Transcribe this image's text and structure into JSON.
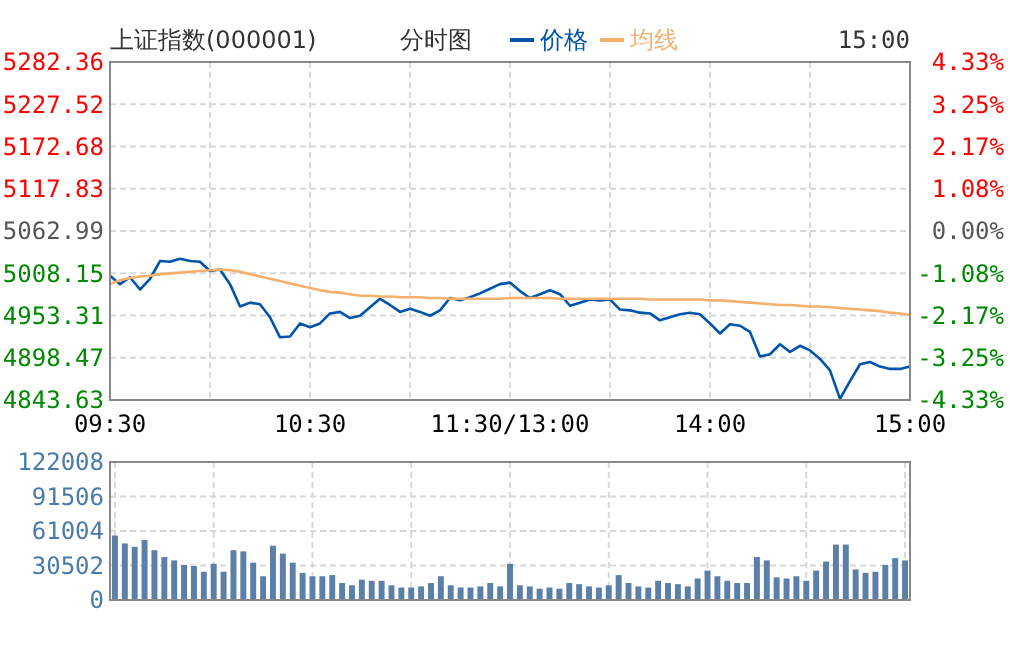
{
  "chart_data": [
    {
      "type": "line",
      "title": "上证指数(000001)",
      "subtitle": "分时图",
      "annotations": [
        "15:00"
      ],
      "legend": "top",
      "grid": true,
      "marker": "none",
      "line_style": "solid",
      "categories": [
        "09:30",
        null,
        null,
        null,
        null,
        null,
        null,
        null,
        null,
        null,
        null,
        null,
        null,
        null,
        null,
        null,
        null,
        null,
        null,
        null,
        "10:30",
        null,
        null,
        null,
        null,
        null,
        null,
        null,
        null,
        null,
        null,
        null,
        null,
        null,
        null,
        null,
        null,
        null,
        null,
        null,
        "11:30/13:00",
        null,
        null,
        null,
        null,
        null,
        null,
        null,
        null,
        null,
        null,
        null,
        null,
        null,
        null,
        null,
        null,
        null,
        null,
        null,
        "14:00",
        null,
        null,
        null,
        null,
        null,
        null,
        null,
        null,
        null,
        null,
        null,
        null,
        null,
        null,
        null,
        null,
        null,
        null,
        null,
        "15:00"
      ],
      "ylim": [
        4843.63,
        5282.36
      ],
      "yticks": [
        {
          "value": 5282.36,
          "label": "5282.36"
        },
        {
          "value": 5227.52,
          "label": "5227.52"
        },
        {
          "value": 5172.68,
          "label": "5172.68"
        },
        {
          "value": 5117.83,
          "label": "5117.83"
        },
        {
          "value": 5062.99,
          "label": "5062.99"
        },
        {
          "value": 5008.15,
          "label": "5008.15"
        },
        {
          "value": 4953.31,
          "label": "4953.31"
        },
        {
          "value": 4898.47,
          "label": "4898.47"
        },
        {
          "value": 4843.63,
          "label": "4843.63"
        }
      ],
      "y2lim": [
        -4.33,
        4.33
      ],
      "y2ticks": [
        {
          "value": 4.33,
          "label": "4.33%"
        },
        {
          "value": 3.25,
          "label": "3.25%"
        },
        {
          "value": 2.17,
          "label": "2.17%"
        },
        {
          "value": 1.08,
          "label": "1.08%"
        },
        {
          "value": 0,
          "label": "0.00%"
        },
        {
          "value": -1.08,
          "label": "-1.08%"
        },
        {
          "value": -2.17,
          "label": "-2.17%"
        },
        {
          "value": -3.25,
          "label": "-3.25%"
        },
        {
          "value": -4.33,
          "label": "-4.33%"
        }
      ],
      "series": [
        {
          "name": "价格",
          "color": "#0055aa",
          "values": [
            5005,
            4994,
            5003,
            4987,
            5001,
            5024,
            5023,
            5027,
            5024,
            5023,
            5011,
            5013,
            4994,
            4965,
            4970,
            4968,
            4951,
            4925,
            4926,
            4943,
            4938,
            4943,
            4956,
            4958,
            4950,
            4953,
            4964,
            4975,
            4967,
            4958,
            4962,
            4958,
            4953,
            4960,
            4976,
            4973,
            4977,
            4982,
            4988,
            4994,
            4996,
            4985,
            4976,
            4981,
            4986,
            4981,
            4966,
            4970,
            4974,
            4973,
            4974,
            4961,
            4960,
            4957,
            4956,
            4947,
            4951,
            4955,
            4957,
            4955,
            4943,
            4930,
            4942,
            4940,
            4932,
            4900,
            4903,
            4916,
            4906,
            4914,
            4908,
            4897,
            4882,
            4845,
            4868,
            4890,
            4893,
            4887,
            4884,
            4884,
            4887
          ]
        },
        {
          "name": "均线",
          "color": "#f5b06e",
          "values": [
            4994,
            4999,
            5002,
            5004,
            5005,
            5007,
            5008,
            5009,
            5010,
            5011,
            5012,
            5013,
            5012,
            5010,
            5007,
            5004,
            5001,
            4998,
            4995,
            4992,
            4989,
            4986,
            4984,
            4983,
            4981,
            4979,
            4979,
            4978,
            4978,
            4977,
            4977,
            4977,
            4976,
            4976,
            4975,
            4975,
            4975,
            4975,
            4975,
            4975,
            4976,
            4976,
            4976,
            4976,
            4976,
            4975,
            4975,
            4975,
            4975,
            4975,
            4975,
            4975,
            4975,
            4975,
            4974,
            4974,
            4974,
            4974,
            4974,
            4974,
            4973,
            4973,
            4972,
            4971,
            4970,
            4969,
            4968,
            4967,
            4967,
            4966,
            4965,
            4965,
            4964,
            4963,
            4962,
            4961,
            4960,
            4959,
            4957,
            4956,
            4954
          ]
        }
      ]
    },
    {
      "type": "bar",
      "grid": true,
      "tick_labels": "y",
      "color": "#5b7fa6",
      "categories": [
        null,
        null,
        null,
        null,
        null,
        null,
        null,
        null,
        null,
        null,
        null,
        null,
        null,
        null,
        null,
        null,
        null,
        null,
        null,
        null,
        null,
        null,
        null,
        null,
        null,
        null,
        null,
        null,
        null,
        null,
        null,
        null,
        null,
        null,
        null,
        null,
        null,
        null,
        null,
        null,
        null,
        null,
        null,
        null,
        null,
        null,
        null,
        null,
        null,
        null,
        null,
        null,
        null,
        null,
        null,
        null,
        null,
        null,
        null,
        null,
        null,
        null,
        null,
        null,
        null,
        null,
        null,
        null,
        null,
        null,
        null,
        null,
        null,
        null,
        null,
        null,
        null,
        null,
        null,
        null,
        null
      ],
      "ylim": [
        0,
        122008
      ],
      "yticks": [
        0,
        30502,
        61004,
        91506,
        122008
      ],
      "values": [
        57000,
        50000,
        47000,
        53000,
        44000,
        38000,
        35000,
        31000,
        30000,
        25000,
        32000,
        25000,
        44000,
        43000,
        33000,
        21000,
        48000,
        41000,
        33000,
        24000,
        21000,
        21000,
        22000,
        15000,
        13000,
        18000,
        17000,
        17000,
        13000,
        11000,
        11000,
        12000,
        15000,
        21000,
        13000,
        11000,
        11000,
        12000,
        15000,
        12000,
        32000,
        13000,
        12000,
        10000,
        11000,
        10000,
        15000,
        14000,
        12000,
        11000,
        13000,
        22000,
        15000,
        12000,
        11000,
        17000,
        15000,
        14000,
        12000,
        19000,
        26000,
        21000,
        17000,
        15000,
        15000,
        38000,
        35000,
        20000,
        19000,
        21000,
        17000,
        26000,
        34000,
        49000,
        49000,
        27000,
        24000,
        25000,
        31000,
        37000,
        35000
      ]
    }
  ]
}
